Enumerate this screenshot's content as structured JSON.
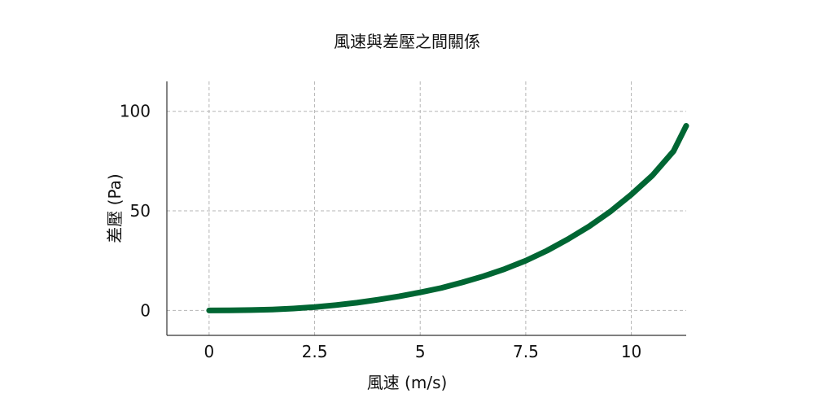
{
  "chart_data": {
    "type": "line",
    "title": "風速與差壓之間關係",
    "xlabel": "風速 (m/s)",
    "ylabel": "差壓 (Pa)",
    "xlim": [
      -1,
      11.3
    ],
    "ylim": [
      -12.5,
      115
    ],
    "x_ticks": [
      0,
      2.5,
      5,
      7.5,
      10
    ],
    "x_tick_labels": [
      "0",
      "2.5",
      "5",
      "7.5",
      "10"
    ],
    "y_ticks": [
      0,
      50,
      100
    ],
    "y_tick_labels": [
      "0",
      "50",
      "100"
    ],
    "grid": true,
    "legend": "none",
    "series": [
      {
        "color": "#006633",
        "x": [
          0,
          0.5,
          1,
          1.5,
          2,
          2.5,
          3,
          3.5,
          4,
          4.5,
          5,
          5.5,
          6,
          6.5,
          7,
          7.5,
          8,
          8.5,
          9,
          9.5,
          10,
          10.5,
          11,
          11.3
        ],
        "y": [
          0,
          0.05,
          0.2,
          0.5,
          1.0,
          1.7,
          2.7,
          3.9,
          5.4,
          7.1,
          9.1,
          11.3,
          14.1,
          17.2,
          20.8,
          25.0,
          30.0,
          35.8,
          42.2,
          49.6,
          58.2,
          67.8,
          80.0,
          92.7
        ]
      }
    ]
  }
}
